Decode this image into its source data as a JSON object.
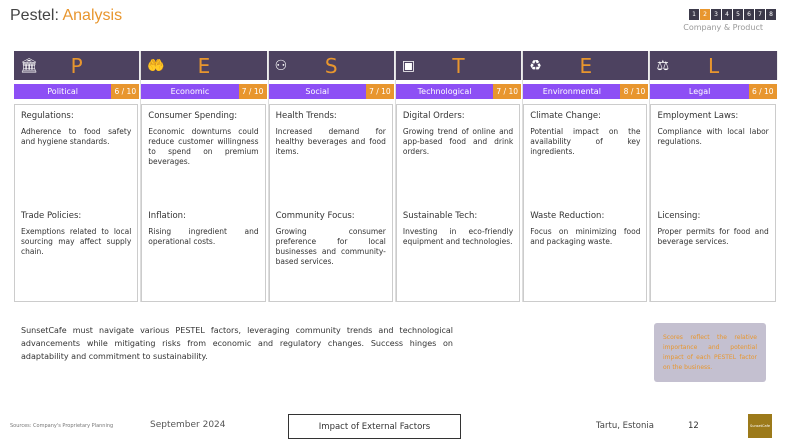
{
  "header": {
    "title": "Pestel:",
    "title_accent": "Analysis",
    "pages": [
      "1",
      "2",
      "3",
      "4",
      "5",
      "6",
      "7",
      "8"
    ],
    "active_page": "2",
    "section": "Company & Product"
  },
  "columns": [
    {
      "icon": "building-columns-icon",
      "glyph": "🏛",
      "letter": "P",
      "name": "Political",
      "score": "6 / 10",
      "factors": [
        {
          "h": "Regulations:",
          "t": "Adherence to food safety and hygiene standards."
        },
        {
          "h": "Trade Policies:",
          "t": "Exemptions related to local sourcing may affect supply chain."
        }
      ]
    },
    {
      "icon": "hand-holding-coin-icon",
      "glyph": "🤲",
      "letter": "E",
      "name": "Economic",
      "score": "7 / 10",
      "factors": [
        {
          "h": "Consumer Spending:",
          "t": "Economic downturns could reduce customer willingness to spend on premium beverages."
        },
        {
          "h": "Inflation:",
          "t": "Rising ingredient and operational costs."
        }
      ]
    },
    {
      "icon": "people-network-icon",
      "glyph": "⚇",
      "letter": "S",
      "name": "Social",
      "score": "7 / 10",
      "factors": [
        {
          "h": "Health Trends:",
          "t": "Increased demand for healthy beverages and food items."
        },
        {
          "h": "Community Focus:",
          "t": "Growing consumer preference for local businesses and community-based services."
        }
      ]
    },
    {
      "icon": "microchip-icon",
      "glyph": "▣",
      "letter": "T",
      "name": "Technological",
      "score": "7 / 10",
      "factors": [
        {
          "h": "Digital Orders:",
          "t": "Growing trend of online and app-based food and drink orders."
        },
        {
          "h": "Sustainable Tech:",
          "t": "Investing in eco-friendly equipment and technologies."
        }
      ]
    },
    {
      "icon": "recycle-leaf-icon",
      "glyph": "♻",
      "letter": "E",
      "name": "Environmental",
      "score": "8 / 10",
      "factors": [
        {
          "h": "Climate Change:",
          "t": "Potential impact on the availability of key ingredients."
        },
        {
          "h": "Waste Reduction:",
          "t": "Focus on minimizing food and packaging waste."
        }
      ]
    },
    {
      "icon": "gavel-icon",
      "glyph": "⚖",
      "letter": "L",
      "name": "Legal",
      "score": "6 / 10",
      "factors": [
        {
          "h": "Employment Laws:",
          "t": "Compliance with local labor regulations."
        },
        {
          "h": "Licensing:",
          "t": "Proper permits for food and beverage services."
        }
      ]
    }
  ],
  "summary": "SunsetCafe must navigate various PESTEL factors, leveraging community trends and technological advancements while mitigating risks from economic and regulatory changes. Success hinges on adaptability and commitment to sustainability.",
  "note": "Scores reflect the relative importance and potential impact of each PESTEL factor on the business.",
  "footer": {
    "sources": "Sources: Company's Proprietary Planning",
    "date": "September 2024",
    "topic": "Impact of External Factors",
    "location": "Tartu, Estonia",
    "page": "12",
    "logo": "SunsetCafe"
  },
  "colors": {
    "accent": "#e8962e",
    "purple": "#8d4ff5",
    "header": "#4d4260"
  }
}
